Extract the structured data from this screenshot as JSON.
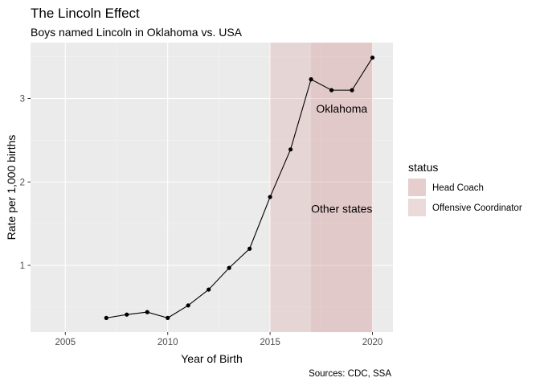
{
  "chart_data": {
    "type": "line",
    "title": "The Lincoln Effect",
    "subtitle": "Boys named Lincoln in Oklahoma vs. USA",
    "xlabel": "Year of Birth",
    "ylabel": "Rate per 1,000 births",
    "caption": "Sources: CDC, SSA",
    "xlim": [
      2003.3,
      2021.0
    ],
    "ylim": [
      0.2,
      3.67
    ],
    "xticks": [
      2005,
      2010,
      2015,
      2020
    ],
    "yticks": [
      1,
      2,
      3
    ],
    "grid": true,
    "series": [
      {
        "x": [
          2007,
          2008,
          2009,
          2010,
          2011,
          2012,
          2013,
          2014,
          2015,
          2016,
          2017,
          2018,
          2019,
          2020
        ],
        "values": [
          0.37,
          0.41,
          0.44,
          0.37,
          0.52,
          0.71,
          0.97,
          1.2,
          1.82,
          2.39,
          3.23,
          3.1,
          3.1,
          3.49
        ]
      }
    ],
    "shaded_regions": [
      {
        "status": "Offensive Coordinator",
        "x": [
          2015,
          2017
        ],
        "color": "#dca3a3"
      },
      {
        "status": "Head Coach",
        "x": [
          2017,
          2020
        ],
        "color": "#cd7a7a"
      }
    ],
    "annotations": [
      {
        "text": "Oklahoma",
        "x": 2018.5,
        "y": 2.88
      },
      {
        "text": "Other states",
        "x": 2018.5,
        "y": 1.68
      }
    ],
    "legend": {
      "title": "status",
      "position": "right",
      "entries": [
        {
          "label": "Head Coach",
          "color": "#cd7a7a"
        },
        {
          "label": "Offensive Coordinator",
          "color": "#dca3a3"
        }
      ]
    }
  }
}
